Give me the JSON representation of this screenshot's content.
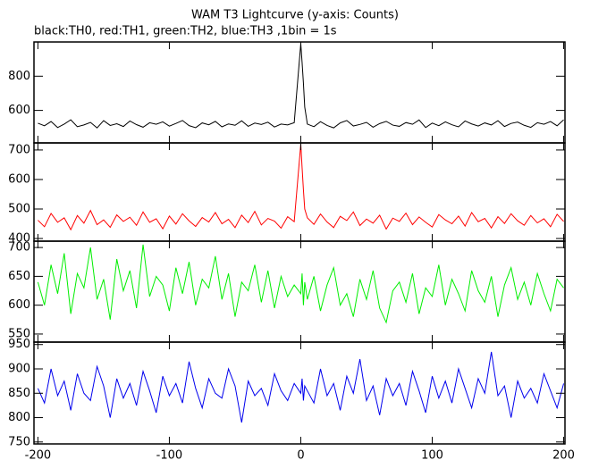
{
  "chart_data": [
    {
      "type": "line",
      "title": "WAM T3 Lightcurve (y-axis: Counts)",
      "subtitle": "black:TH0, red:TH1, green:TH2, blue:TH3 ,1bin = 1s",
      "color": "#000000",
      "x": [
        -200,
        -195,
        -190,
        -185,
        -180,
        -175,
        -170,
        -165,
        -160,
        -155,
        -150,
        -145,
        -140,
        -135,
        -130,
        -125,
        -120,
        -115,
        -110,
        -105,
        -100,
        -95,
        -90,
        -85,
        -80,
        -75,
        -70,
        -65,
        -60,
        -55,
        -50,
        -45,
        -40,
        -35,
        -30,
        -25,
        -20,
        -15,
        -10,
        -5,
        0,
        1,
        2,
        3,
        5,
        10,
        15,
        20,
        25,
        30,
        35,
        40,
        45,
        50,
        55,
        60,
        65,
        70,
        75,
        80,
        85,
        90,
        95,
        100,
        105,
        110,
        115,
        120,
        125,
        130,
        135,
        140,
        145,
        150,
        155,
        160,
        165,
        170,
        175,
        180,
        185,
        190,
        195,
        200
      ],
      "values": [
        525,
        510,
        535,
        500,
        520,
        545,
        505,
        515,
        530,
        498,
        540,
        512,
        522,
        506,
        538,
        517,
        502,
        528,
        519,
        533,
        508,
        524,
        541,
        511,
        499,
        527,
        516,
        536,
        504,
        521,
        513,
        539,
        507,
        526,
        518,
        531,
        503,
        520,
        515,
        528,
        990,
        880,
        760,
        620,
        520,
        505,
        534,
        512,
        498,
        527,
        541,
        509,
        518,
        530,
        502,
        523,
        536,
        514,
        507,
        529,
        519,
        544,
        500,
        526,
        511,
        533,
        516,
        504,
        538,
        521,
        509,
        527,
        515,
        540,
        506,
        524,
        532,
        513,
        501,
        528,
        519,
        535,
        510,
        545
      ],
      "xlim": [
        -203,
        201
      ],
      "ylim": [
        410,
        1000
      ],
      "yticks": [
        600,
        800
      ]
    },
    {
      "type": "line",
      "color": "#ff0000",
      "x": [
        -200,
        -195,
        -190,
        -185,
        -180,
        -175,
        -170,
        -165,
        -160,
        -155,
        -150,
        -145,
        -140,
        -135,
        -130,
        -125,
        -120,
        -115,
        -110,
        -105,
        -100,
        -95,
        -90,
        -85,
        -80,
        -75,
        -70,
        -65,
        -60,
        -55,
        -50,
        -45,
        -40,
        -35,
        -30,
        -25,
        -20,
        -15,
        -10,
        -5,
        0,
        1,
        2,
        3,
        5,
        10,
        15,
        20,
        25,
        30,
        35,
        40,
        45,
        50,
        55,
        60,
        65,
        70,
        75,
        80,
        85,
        90,
        95,
        100,
        105,
        110,
        115,
        120,
        125,
        130,
        135,
        140,
        145,
        150,
        155,
        160,
        165,
        170,
        175,
        180,
        185,
        190,
        195,
        200
      ],
      "values": [
        462,
        440,
        485,
        455,
        470,
        430,
        478,
        452,
        495,
        447,
        463,
        438,
        480,
        458,
        472,
        445,
        490,
        455,
        467,
        433,
        476,
        449,
        484,
        460,
        441,
        471,
        456,
        488,
        450,
        465,
        437,
        479,
        454,
        492,
        446,
        468,
        459,
        435,
        474,
        457,
        720,
        640,
        565,
        500,
        470,
        448,
        483,
        456,
        437,
        475,
        461,
        490,
        444,
        466,
        452,
        479,
        432,
        469,
        458,
        486,
        447,
        473,
        455,
        439,
        481,
        463,
        450,
        476,
        442,
        488,
        457,
        468,
        436,
        474,
        451,
        484,
        460,
        445,
        478,
        453,
        467,
        440,
        482,
        458
      ],
      "xlim": [
        -203,
        201
      ],
      "ylim": [
        391,
        724
      ],
      "yticks": [
        400,
        500,
        600,
        700
      ]
    },
    {
      "type": "line",
      "color": "#00ee00",
      "x": [
        -200,
        -195,
        -190,
        -185,
        -180,
        -175,
        -170,
        -165,
        -160,
        -155,
        -150,
        -145,
        -140,
        -135,
        -130,
        -125,
        -120,
        -115,
        -110,
        -105,
        -100,
        -95,
        -90,
        -85,
        -80,
        -75,
        -70,
        -65,
        -60,
        -55,
        -50,
        -45,
        -40,
        -35,
        -30,
        -25,
        -20,
        -15,
        -10,
        -5,
        0,
        1,
        2,
        3,
        5,
        10,
        15,
        20,
        25,
        30,
        35,
        40,
        45,
        50,
        55,
        60,
        65,
        70,
        75,
        80,
        85,
        90,
        95,
        100,
        105,
        110,
        115,
        120,
        125,
        130,
        135,
        140,
        145,
        150,
        155,
        160,
        165,
        170,
        175,
        180,
        185,
        190,
        195,
        200
      ],
      "values": [
        640,
        600,
        670,
        620,
        690,
        585,
        655,
        630,
        700,
        610,
        645,
        575,
        680,
        625,
        660,
        595,
        705,
        615,
        650,
        635,
        590,
        665,
        620,
        675,
        600,
        645,
        630,
        685,
        610,
        655,
        580,
        640,
        625,
        670,
        605,
        660,
        595,
        650,
        615,
        635,
        620,
        655,
        600,
        640,
        610,
        650,
        590,
        635,
        665,
        600,
        620,
        580,
        645,
        610,
        660,
        595,
        570,
        625,
        640,
        605,
        655,
        585,
        630,
        615,
        670,
        600,
        645,
        620,
        590,
        660,
        625,
        605,
        650,
        580,
        635,
        665,
        610,
        640,
        600,
        655,
        620,
        590,
        645,
        630
      ],
      "xlim": [
        -203,
        201
      ],
      "ylim": [
        536,
        711
      ],
      "yticks": [
        550,
        600,
        650,
        700
      ]
    },
    {
      "type": "line",
      "color": "#0000ee",
      "x": [
        -200,
        -195,
        -190,
        -185,
        -180,
        -175,
        -170,
        -165,
        -160,
        -155,
        -150,
        -145,
        -140,
        -135,
        -130,
        -125,
        -120,
        -115,
        -110,
        -105,
        -100,
        -95,
        -90,
        -85,
        -80,
        -75,
        -70,
        -65,
        -60,
        -55,
        -50,
        -45,
        -40,
        -35,
        -30,
        -25,
        -20,
        -15,
        -10,
        -5,
        0,
        1,
        2,
        3,
        5,
        10,
        15,
        20,
        25,
        30,
        35,
        40,
        45,
        50,
        55,
        60,
        65,
        70,
        75,
        80,
        85,
        90,
        95,
        100,
        105,
        110,
        115,
        120,
        125,
        130,
        135,
        140,
        145,
        150,
        155,
        160,
        165,
        170,
        175,
        180,
        185,
        190,
        195,
        200
      ],
      "values": [
        860,
        830,
        900,
        845,
        875,
        815,
        890,
        850,
        835,
        905,
        865,
        800,
        880,
        840,
        870,
        825,
        895,
        855,
        810,
        885,
        845,
        870,
        830,
        915,
        860,
        820,
        880,
        850,
        840,
        900,
        865,
        790,
        875,
        845,
        860,
        825,
        890,
        855,
        835,
        870,
        850,
        880,
        835,
        865,
        855,
        830,
        900,
        845,
        870,
        815,
        885,
        850,
        920,
        835,
        865,
        805,
        880,
        845,
        870,
        825,
        895,
        855,
        810,
        885,
        840,
        875,
        830,
        900,
        860,
        820,
        880,
        850,
        935,
        845,
        865,
        800,
        875,
        840,
        860,
        830,
        890,
        855,
        820,
        870
      ],
      "xlim": [
        -203,
        201
      ],
      "ylim": [
        746,
        955
      ],
      "yticks": [
        750,
        800,
        850,
        900,
        950
      ],
      "xticks": [
        -200,
        -100,
        0,
        100,
        200
      ]
    }
  ]
}
